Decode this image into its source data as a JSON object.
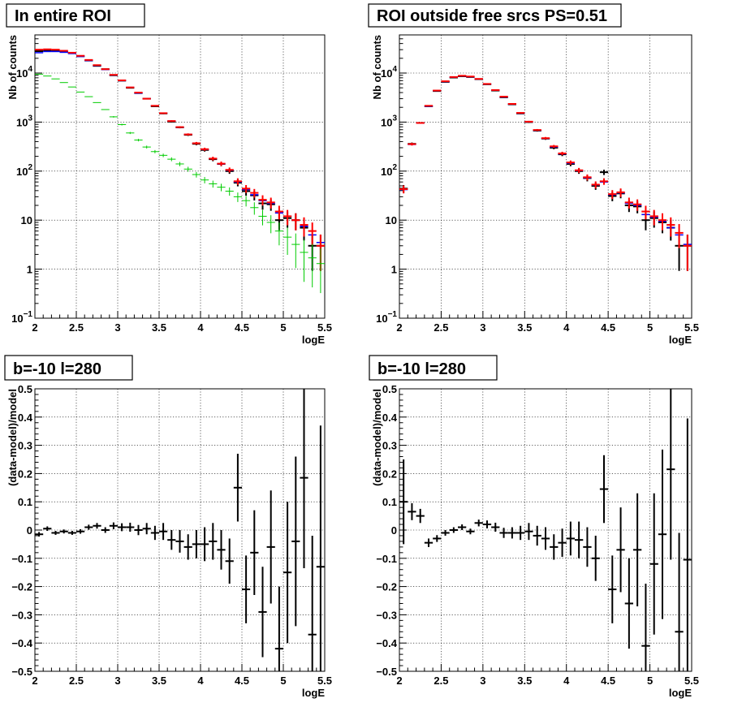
{
  "chart_data": [
    {
      "type": "scatter",
      "title": "In entire ROI",
      "xlabel": "logE",
      "ylabel": "Nb of counts",
      "xlim": [
        2,
        5.5
      ],
      "ylim": [
        0.1,
        60000
      ],
      "yscale": "log",
      "grid": true,
      "xticks": [
        "2",
        "2.5",
        "3",
        "3.5",
        "4",
        "4.5",
        "5",
        "5.5"
      ],
      "yticks": [
        {
          "value": 0.1,
          "base": "10",
          "exp": "−1"
        },
        {
          "value": 1,
          "label": "1"
        },
        {
          "value": 10,
          "label": "10"
        },
        {
          "value": 100,
          "base": "10",
          "exp": "2"
        },
        {
          "value": 1000,
          "base": "10",
          "exp": "3"
        },
        {
          "value": 10000,
          "base": "10",
          "exp": "4"
        }
      ],
      "x": [
        2.05,
        2.15,
        2.25,
        2.35,
        2.45,
        2.55,
        2.65,
        2.75,
        2.85,
        2.95,
        3.05,
        3.15,
        3.25,
        3.35,
        3.45,
        3.55,
        3.65,
        3.75,
        3.85,
        3.95,
        4.05,
        4.15,
        4.25,
        4.35,
        4.45,
        4.55,
        4.65,
        4.75,
        4.85,
        4.95,
        5.05,
        5.15,
        5.25,
        5.35,
        5.45
      ],
      "series": [
        {
          "color": "#000000",
          "style": "errorbar",
          "values": [
            28000,
            28500,
            28000,
            27000,
            25500,
            22000,
            18000,
            14000,
            12000,
            9000,
            7000,
            5000,
            3900,
            3000,
            2100,
            1500,
            1020,
            780,
            550,
            360,
            270,
            175,
            140,
            100,
            58,
            39,
            32,
            22,
            21,
            10,
            11,
            10,
            7,
            3,
            3
          ]
        },
        {
          "color": "#0000ff",
          "style": "line",
          "values": [
            26000,
            27500,
            27500,
            26500,
            25000,
            21800,
            18000,
            14200,
            11800,
            9100,
            7000,
            5100,
            3900,
            3000,
            2150,
            1520,
            1050,
            780,
            560,
            370,
            275,
            180,
            140,
            104,
            60,
            42,
            33,
            25,
            22,
            14,
            12,
            10,
            7.5,
            5,
            3.5
          ]
        },
        {
          "color": "#ff0000",
          "style": "errorbar",
          "values": [
            30000,
            30500,
            30000,
            28500,
            26000,
            22500,
            18500,
            14500,
            12000,
            9200,
            7100,
            5100,
            4000,
            3000,
            2150,
            1520,
            1050,
            790,
            560,
            370,
            280,
            180,
            142,
            106,
            62,
            44,
            36,
            26,
            23,
            15,
            12,
            10,
            8,
            6,
            3
          ]
        },
        {
          "color": "#00cc00",
          "style": "errorbar",
          "values": [
            9500,
            8700,
            7600,
            6400,
            5200,
            4100,
            3300,
            2500,
            1800,
            1280,
            890,
            600,
            430,
            310,
            250,
            210,
            175,
            140,
            110,
            85,
            66,
            55,
            47,
            39,
            30,
            25,
            18,
            12,
            9,
            6,
            4.5,
            3.2,
            2.2,
            1.7,
            1.3
          ]
        }
      ]
    },
    {
      "type": "scatter",
      "title": "ROI outside free srcs PS=0.51",
      "xlabel": "logE",
      "ylabel": "Nb of counts",
      "xlim": [
        2,
        5.5
      ],
      "ylim": [
        0.1,
        60000
      ],
      "yscale": "log",
      "grid": true,
      "xticks": [
        "2",
        "2.5",
        "3",
        "3.5",
        "4",
        "4.5",
        "5",
        "5.5"
      ],
      "yticks": [
        {
          "value": 0.1,
          "base": "10",
          "exp": "−1"
        },
        {
          "value": 1,
          "label": "1"
        },
        {
          "value": 10,
          "label": "10"
        },
        {
          "value": 100,
          "base": "10",
          "exp": "2"
        },
        {
          "value": 1000,
          "base": "10",
          "exp": "3"
        },
        {
          "value": 10000,
          "base": "10",
          "exp": "4"
        }
      ],
      "x": [
        2.05,
        2.15,
        2.25,
        2.35,
        2.45,
        2.55,
        2.65,
        2.75,
        2.85,
        2.95,
        3.05,
        3.15,
        3.25,
        3.35,
        3.45,
        3.55,
        3.65,
        3.75,
        3.85,
        3.95,
        4.05,
        4.15,
        4.25,
        4.35,
        4.45,
        4.55,
        4.65,
        4.75,
        4.85,
        4.95,
        5.05,
        5.15,
        5.25,
        5.35,
        5.45
      ],
      "series": [
        {
          "color": "#000000",
          "style": "errorbar",
          "values": [
            44,
            360,
            960,
            2100,
            4300,
            6600,
            8100,
            8600,
            8300,
            7500,
            5900,
            4400,
            3200,
            2300,
            1500,
            1000,
            670,
            460,
            300,
            220,
            140,
            100,
            72,
            50,
            95,
            31,
            35,
            20,
            19,
            10,
            11,
            9,
            7,
            3,
            3
          ]
        },
        {
          "color": "#0000ff",
          "style": "line",
          "values": [
            42,
            350,
            950,
            2100,
            4350,
            6700,
            8200,
            8700,
            8400,
            7550,
            5950,
            4450,
            3250,
            2320,
            1520,
            1010,
            680,
            465,
            310,
            225,
            145,
            102,
            73,
            52,
            60,
            33,
            36,
            22,
            20,
            13,
            11.5,
            9.5,
            7,
            5,
            3.2
          ]
        },
        {
          "color": "#ff0000",
          "style": "errorbar",
          "values": [
            43,
            355,
            960,
            2150,
            4400,
            6800,
            8300,
            8800,
            8500,
            7600,
            6000,
            4500,
            3300,
            2350,
            1540,
            1020,
            690,
            470,
            320,
            230,
            150,
            104,
            75,
            53,
            62,
            34,
            37,
            23,
            21,
            15,
            12,
            10,
            8,
            5.5,
            3
          ]
        }
      ]
    },
    {
      "type": "scatter",
      "title": "b=-10 l=280",
      "xlabel": "logE",
      "ylabel": "(data-model)/model",
      "xlim": [
        2,
        5.5
      ],
      "ylim": [
        -0.5,
        0.5
      ],
      "grid": true,
      "xticks": [
        "2",
        "2.5",
        "3",
        "3.5",
        "4",
        "4.5",
        "5",
        "5.5"
      ],
      "yticks": [
        "−0.5",
        "−0.4",
        "−0.3",
        "−0.2",
        "−0.1",
        "0",
        "0.1",
        "0.2",
        "0.3",
        "0.4",
        "0.5"
      ],
      "x": [
        2.05,
        2.15,
        2.25,
        2.35,
        2.45,
        2.55,
        2.65,
        2.75,
        2.85,
        2.95,
        3.05,
        3.15,
        3.25,
        3.35,
        3.45,
        3.55,
        3.65,
        3.75,
        3.85,
        3.95,
        4.05,
        4.15,
        4.25,
        4.35,
        4.45,
        4.55,
        4.65,
        4.75,
        4.85,
        4.95,
        5.05,
        5.15,
        5.25,
        5.35,
        5.45
      ],
      "series": [
        {
          "color": "#000000",
          "style": "errorbar",
          "values": [
            -0.015,
            0.005,
            -0.01,
            -0.005,
            -0.01,
            -0.005,
            0.01,
            0.015,
            0.0,
            0.015,
            0.01,
            0.01,
            0.0,
            0.005,
            -0.01,
            -0.005,
            -0.035,
            -0.04,
            -0.06,
            -0.05,
            -0.05,
            -0.04,
            -0.07,
            -0.11,
            0.15,
            -0.21,
            -0.08,
            -0.29,
            -0.06,
            -0.42,
            -0.15,
            -0.04,
            0.185,
            -0.37,
            -0.13
          ],
          "errors": [
            0.008,
            0.008,
            0.007,
            0.007,
            0.007,
            0.008,
            0.009,
            0.01,
            0.01,
            0.012,
            0.014,
            0.016,
            0.018,
            0.02,
            0.025,
            0.03,
            0.035,
            0.04,
            0.045,
            0.05,
            0.06,
            0.065,
            0.07,
            0.08,
            0.12,
            0.12,
            0.15,
            0.16,
            0.2,
            0.22,
            0.25,
            0.3,
            0.32,
            0.35,
            0.5
          ]
        }
      ]
    },
    {
      "type": "scatter",
      "title": "b=-10 l=280",
      "xlabel": "logE",
      "ylabel": "(data-model)/model",
      "xlim": [
        2,
        5.5
      ],
      "ylim": [
        -0.5,
        0.5
      ],
      "grid": true,
      "xticks": [
        "2",
        "2.5",
        "3",
        "3.5",
        "4",
        "4.5",
        "5",
        "5.5"
      ],
      "yticks": [
        "−0.5",
        "−0.4",
        "−0.3",
        "−0.2",
        "−0.1",
        "0",
        "0.1",
        "0.2",
        "0.3",
        "0.4",
        "0.5"
      ],
      "x": [
        2.05,
        2.15,
        2.25,
        2.35,
        2.45,
        2.55,
        2.65,
        2.75,
        2.85,
        2.95,
        3.05,
        3.15,
        3.25,
        3.35,
        3.45,
        3.55,
        3.65,
        3.75,
        3.85,
        3.95,
        4.05,
        4.15,
        4.25,
        4.35,
        4.45,
        4.55,
        4.65,
        4.75,
        4.85,
        4.95,
        5.05,
        5.15,
        5.25,
        5.35,
        5.45
      ],
      "series": [
        {
          "color": "#000000",
          "style": "errorbar",
          "values": [
            0.1,
            0.065,
            0.05,
            -0.045,
            -0.03,
            -0.01,
            0.0,
            0.01,
            -0.005,
            0.025,
            0.02,
            0.01,
            -0.01,
            -0.01,
            -0.01,
            -0.005,
            -0.02,
            -0.03,
            -0.06,
            -0.045,
            -0.03,
            -0.035,
            -0.06,
            -0.1,
            0.145,
            -0.21,
            -0.07,
            -0.26,
            -0.07,
            -0.41,
            -0.12,
            -0.015,
            0.215,
            -0.36,
            -0.105
          ],
          "errors": [
            0.15,
            0.03,
            0.025,
            0.015,
            0.012,
            0.01,
            0.01,
            0.01,
            0.01,
            0.012,
            0.014,
            0.016,
            0.018,
            0.02,
            0.025,
            0.03,
            0.035,
            0.04,
            0.045,
            0.05,
            0.06,
            0.065,
            0.07,
            0.08,
            0.12,
            0.12,
            0.15,
            0.16,
            0.2,
            0.22,
            0.25,
            0.3,
            0.32,
            0.35,
            0.5
          ]
        }
      ]
    }
  ]
}
